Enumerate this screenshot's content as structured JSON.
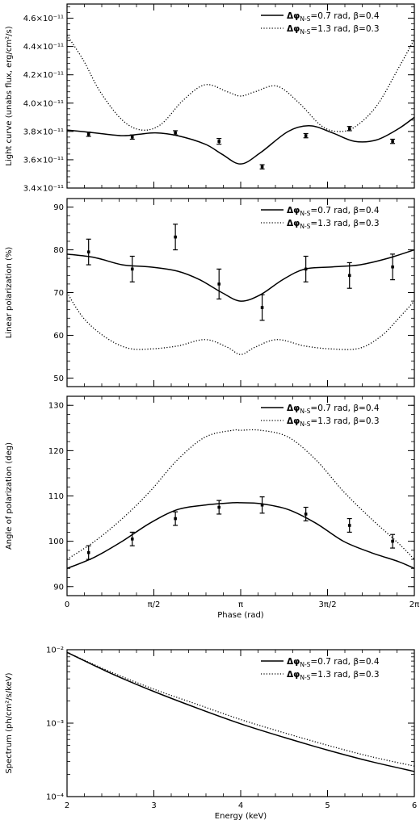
{
  "figure": {
    "xlabel_phase": "Phase (rad)",
    "xlabel_energy": "Energy (keV)"
  },
  "legend": {
    "solid_label": "Δφ N-S=0.7 rad, β=0.4",
    "dotted_label": "Δφ N-S=1.3 rad, β=0.3"
  },
  "chart_data": [
    {
      "type": "line",
      "ylabel": "Light curve (unabs flux, erg/cm²/s)",
      "x_unit": "rad",
      "xlim": [
        0,
        6.2832
      ],
      "ylim": [
        3.4e-11,
        4.7e-11
      ],
      "yticks": [
        3.4e-11,
        3.6e-11,
        3.8e-11,
        4e-11,
        4.2e-11,
        4.4e-11,
        4.6e-11
      ],
      "ytick_labels": [
        "3.4×10⁻¹¹",
        "3.6×10⁻¹¹",
        "3.8×10⁻¹¹",
        "4.0×10⁻¹¹",
        "4.2×10⁻¹¹",
        "4.4×10⁻¹¹",
        "4.6×10⁻¹¹"
      ],
      "series": [
        {
          "name": "Δφ N-S=0.7 rad, β=0.4",
          "style": "solid",
          "x": [
            0,
            0.5,
            1.0,
            1.3,
            1.6,
            2.0,
            2.5,
            2.8,
            3.1416,
            3.5,
            4.0,
            4.4,
            4.8,
            5.2,
            5.6,
            6.0,
            6.2832
          ],
          "y": [
            3.81e-11,
            3.79e-11,
            3.77e-11,
            3.78e-11,
            3.79e-11,
            3.77e-11,
            3.71e-11,
            3.64e-11,
            3.57e-11,
            3.65e-11,
            3.8e-11,
            3.84e-11,
            3.79e-11,
            3.73e-11,
            3.74e-11,
            3.82e-11,
            3.9e-11
          ]
        },
        {
          "name": "Δφ N-S=1.3 rad, β=0.3",
          "style": "dotted",
          "x": [
            0,
            0.3,
            0.6,
            1.0,
            1.35,
            1.7,
            2.1,
            2.5,
            2.9,
            3.1416,
            3.4,
            3.8,
            4.2,
            4.6,
            4.9,
            5.2,
            5.6,
            6.0,
            6.2832
          ],
          "y": [
            4.48e-11,
            4.3e-11,
            4.08e-11,
            3.88e-11,
            3.81e-11,
            3.85e-11,
            4.02e-11,
            4.13e-11,
            4.08e-11,
            4.05e-11,
            4.08e-11,
            4.12e-11,
            4e-11,
            3.84e-11,
            3.8e-11,
            3.83e-11,
            3.98e-11,
            4.25e-11,
            4.45e-11
          ]
        }
      ],
      "points": {
        "x": [
          0.39,
          1.18,
          1.96,
          2.75,
          3.53,
          4.32,
          5.11,
          5.89
        ],
        "y": [
          3.78e-11,
          3.76e-11,
          3.79e-11,
          3.73e-11,
          3.55e-11,
          3.77e-11,
          3.82e-11,
          3.73e-11
        ],
        "err": [
          1.5e-13,
          1.5e-13,
          1.5e-13,
          2e-13,
          1.5e-13,
          1.5e-13,
          1.5e-13,
          1.5e-13
        ]
      },
      "legend_position": "top-right"
    },
    {
      "type": "line",
      "ylabel": "Linear polarization (%)",
      "x_unit": "rad",
      "xlim": [
        0,
        6.2832
      ],
      "ylim": [
        48,
        92
      ],
      "yticks": [
        50,
        60,
        70,
        80,
        90
      ],
      "ytick_labels": [
        "50",
        "60",
        "70",
        "80",
        "90"
      ],
      "series": [
        {
          "name": "Δφ N-S=0.7 rad, β=0.4",
          "style": "solid",
          "x": [
            0,
            0.5,
            1.0,
            1.5,
            2.0,
            2.4,
            2.8,
            3.1416,
            3.5,
            3.9,
            4.3,
            4.8,
            5.3,
            5.8,
            6.2832
          ],
          "y": [
            79,
            78.2,
            76.5,
            76,
            75,
            73,
            70,
            68,
            69.5,
            73,
            75.5,
            76,
            76.5,
            78,
            80
          ]
        },
        {
          "name": "Δφ N-S=1.3 rad, β=0.3",
          "style": "dotted",
          "x": [
            0,
            0.3,
            0.7,
            1.1,
            1.5,
            2.0,
            2.5,
            2.9,
            3.1416,
            3.4,
            3.8,
            4.3,
            4.8,
            5.3,
            5.7,
            6.0,
            6.2832
          ],
          "y": [
            70,
            64,
            59.5,
            57,
            56.8,
            57.5,
            59,
            57.2,
            55.5,
            57.2,
            59,
            57.5,
            56.8,
            57,
            60,
            64,
            68
          ]
        }
      ],
      "points": {
        "x": [
          0.39,
          1.18,
          1.96,
          2.75,
          3.53,
          4.32,
          5.11,
          5.89
        ],
        "y": [
          79.5,
          75.5,
          83,
          72,
          66.5,
          75.5,
          74,
          76
        ],
        "err": [
          3,
          3,
          3,
          3.5,
          3,
          3,
          3,
          3
        ]
      },
      "legend_position": "top-right"
    },
    {
      "type": "line",
      "ylabel": "Angle of polarization (deg)",
      "xlabel": "Phase (rad)",
      "x_unit": "rad",
      "xlim": [
        0,
        6.2832
      ],
      "xticks": [
        0,
        1.5708,
        3.1416,
        4.7124,
        6.2832
      ],
      "xtick_labels": [
        "0",
        "π/2",
        "π",
        "3π/2",
        "2π"
      ],
      "ylim": [
        88,
        132
      ],
      "yticks": [
        90,
        100,
        110,
        120,
        130
      ],
      "ytick_labels": [
        "90",
        "100",
        "110",
        "120",
        "130"
      ],
      "series": [
        {
          "name": "Δφ N-S=0.7 rad, β=0.4",
          "style": "solid",
          "x": [
            0,
            0.5,
            1.0,
            1.5,
            2.0,
            2.5,
            3.0,
            3.1416,
            3.5,
            4.0,
            4.5,
            5.0,
            5.5,
            6.0,
            6.2832
          ],
          "y": [
            94,
            96.5,
            100,
            104,
            107,
            108,
            108.5,
            108.5,
            108.3,
            107,
            104,
            100,
            97.5,
            95.5,
            94
          ]
        },
        {
          "name": "Δφ N-S=1.3 rad, β=0.3",
          "style": "dotted",
          "x": [
            0,
            0.5,
            1.0,
            1.5,
            2.0,
            2.5,
            3.0,
            3.1416,
            3.5,
            4.0,
            4.5,
            5.0,
            5.5,
            6.0,
            6.2832
          ],
          "y": [
            96,
            100,
            105,
            111,
            118,
            123,
            124.5,
            124.5,
            124.5,
            123,
            118,
            111,
            105,
            99.5,
            96
          ]
        }
      ],
      "points": {
        "x": [
          0.39,
          1.18,
          1.96,
          2.75,
          3.53,
          4.32,
          5.11,
          5.89
        ],
        "y": [
          97.5,
          100.5,
          105,
          107.5,
          108,
          106,
          103.5,
          100
        ],
        "err": [
          1.5,
          1.5,
          1.5,
          1.5,
          1.8,
          1.5,
          1.5,
          1.5
        ]
      },
      "legend_position": "top-right"
    },
    {
      "type": "line",
      "ylabel": "Spectrum (ph/cm²/s/keV)",
      "xlabel": "Energy (keV)",
      "x_unit": "keV",
      "xlim": [
        2,
        6
      ],
      "xticks": [
        2,
        3,
        4,
        5,
        6
      ],
      "xtick_labels": [
        "2",
        "3",
        "4",
        "5",
        "6"
      ],
      "yscale": "log",
      "ylim": [
        0.0001,
        0.01
      ],
      "yticks": [
        0.0001,
        0.001,
        0.01
      ],
      "ytick_labels": [
        "10⁻⁴",
        "10⁻³",
        "10⁻²"
      ],
      "series": [
        {
          "name": "Δφ N-S=0.7 rad, β=0.4",
          "style": "solid",
          "x": [
            2,
            2.5,
            3,
            3.5,
            4,
            4.5,
            5,
            5.5,
            6
          ],
          "y": [
            0.0092,
            0.0048,
            0.0027,
            0.0016,
            0.00098,
            0.00064,
            0.00043,
            0.0003,
            0.00022
          ]
        },
        {
          "name": "Δφ N-S=1.3 rad, β=0.3",
          "style": "dotted",
          "x": [
            2,
            2.5,
            3,
            3.5,
            4,
            4.5,
            5,
            5.5,
            6
          ],
          "y": [
            0.0092,
            0.005,
            0.0029,
            0.0018,
            0.00112,
            0.00074,
            0.0005,
            0.00035,
            0.00026
          ]
        }
      ],
      "legend_position": "top-right"
    }
  ]
}
